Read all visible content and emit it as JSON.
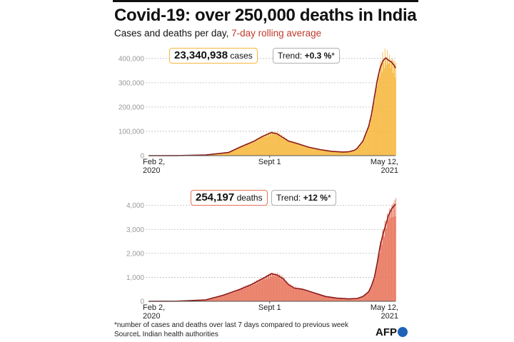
{
  "header": {
    "title": "Covid-19: over 250,000 deaths in India",
    "subtitle_main": "Cases and deaths per day, ",
    "subtitle_rolling": "7-day rolling average"
  },
  "cases_box": {
    "value": "23,340,938",
    "unit": "cases",
    "trend_label": "Trend: ",
    "trend_value": "+0.3 %",
    "trend_star": "*"
  },
  "deaths_box": {
    "value": "254,197",
    "unit": "deaths",
    "trend_label": "Trend: ",
    "trend_value": "+12 %",
    "trend_star": "*"
  },
  "footer": {
    "note": "*number of cases and deaths over last 7 days compared to previous week",
    "source": "SourceL Indian health authorities",
    "logo": "AFP"
  },
  "colors": {
    "cases_bar": "#f6b73c",
    "deaths_bar": "#e8735a",
    "line": "#8b1a1a",
    "grid": "#bbbbbb"
  },
  "chart_data": [
    {
      "type": "area",
      "title": "Cases per day",
      "series_name": "cases",
      "x": [
        0,
        50,
        100,
        140,
        160,
        185,
        200,
        215,
        225,
        235,
        245,
        260,
        280,
        300,
        320,
        340,
        350,
        360,
        365,
        375,
        385,
        390,
        395,
        400,
        405,
        410,
        415,
        420,
        425,
        430,
        432
      ],
      "values": [
        0,
        200,
        3000,
        13000,
        35000,
        60000,
        80000,
        95000,
        90000,
        75000,
        60000,
        50000,
        35000,
        25000,
        18000,
        15000,
        16000,
        22000,
        30000,
        60000,
        120000,
        170000,
        240000,
        310000,
        360000,
        390000,
        402000,
        392000,
        385000,
        370000,
        360000
      ],
      "ylim": [
        0,
        420000
      ],
      "yticks": [
        0,
        100000,
        200000,
        300000,
        400000
      ],
      "ytick_labels": [
        "0",
        "100,000",
        "200,000",
        "300,000",
        "400,000"
      ],
      "xtick_labels": [
        {
          "pos": "start",
          "lines": [
            "Feb 2,",
            "2020"
          ]
        },
        {
          "pos": "sept",
          "lines": [
            "Sept 1"
          ]
        },
        {
          "pos": "end",
          "lines": [
            "May 12,",
            "2021"
          ]
        }
      ]
    },
    {
      "type": "area",
      "title": "Deaths per day",
      "series_name": "deaths",
      "x": [
        0,
        50,
        100,
        130,
        160,
        180,
        200,
        215,
        225,
        235,
        245,
        255,
        270,
        290,
        310,
        330,
        350,
        365,
        375,
        385,
        390,
        395,
        400,
        405,
        410,
        415,
        420,
        425,
        430,
        432
      ],
      "values": [
        0,
        5,
        60,
        250,
        500,
        700,
        950,
        1150,
        1100,
        950,
        700,
        550,
        500,
        350,
        200,
        130,
        100,
        120,
        200,
        400,
        650,
        1000,
        1600,
        2300,
        2800,
        3200,
        3600,
        3850,
        4000,
        4050
      ],
      "ylim": [
        0,
        4200
      ],
      "yticks": [
        0,
        1000,
        2000,
        3000,
        4000
      ],
      "ytick_labels": [
        "0",
        "1,000",
        "2,000",
        "3,000",
        "4,000"
      ],
      "xtick_labels": [
        {
          "pos": "start",
          "lines": [
            "Feb 2,",
            "2020"
          ]
        },
        {
          "pos": "sept",
          "lines": [
            "Sept 1"
          ]
        },
        {
          "pos": "end",
          "lines": [
            "May 12,",
            "2021"
          ]
        }
      ]
    }
  ]
}
